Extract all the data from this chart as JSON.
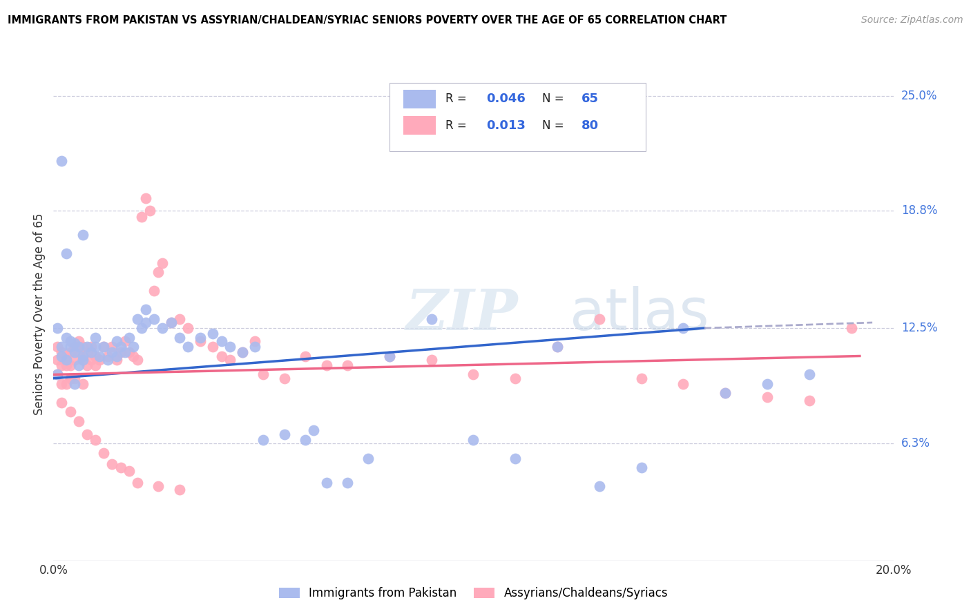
{
  "title": "IMMIGRANTS FROM PAKISTAN VS ASSYRIAN/CHALDEAN/SYRIAC SENIORS POVERTY OVER THE AGE OF 65 CORRELATION CHART",
  "source": "Source: ZipAtlas.com",
  "ylabel_ticks": [
    "6.3%",
    "12.5%",
    "18.8%",
    "25.0%"
  ],
  "ylabel_values": [
    0.063,
    0.125,
    0.188,
    0.25
  ],
  "ylabel_label": "Seniors Poverty Over the Age of 65",
  "legend_label1": "Immigrants from Pakistan",
  "legend_label2": "Assyrians/Chaldeans/Syriacs",
  "R1": "0.046",
  "N1": "65",
  "R2": "0.013",
  "N2": "80",
  "color_blue": "#aabbee",
  "color_pink": "#ffaabb",
  "color_line_blue": "#3366cc",
  "color_line_pink": "#ee6688",
  "watermark_zip": "ZIP",
  "watermark_atlas": "atlas",
  "blue_x": [
    0.001,
    0.001,
    0.002,
    0.002,
    0.003,
    0.003,
    0.004,
    0.004,
    0.005,
    0.005,
    0.006,
    0.006,
    0.007,
    0.007,
    0.008,
    0.009,
    0.01,
    0.01,
    0.011,
    0.012,
    0.013,
    0.014,
    0.015,
    0.015,
    0.016,
    0.017,
    0.018,
    0.019,
    0.02,
    0.021,
    0.022,
    0.024,
    0.026,
    0.028,
    0.03,
    0.032,
    0.035,
    0.038,
    0.04,
    0.042,
    0.045,
    0.048,
    0.05,
    0.055,
    0.06,
    0.062,
    0.065,
    0.07,
    0.075,
    0.08,
    0.09,
    0.1,
    0.11,
    0.12,
    0.13,
    0.14,
    0.15,
    0.16,
    0.17,
    0.18,
    0.002,
    0.003,
    0.005,
    0.007,
    0.022
  ],
  "blue_y": [
    0.1,
    0.125,
    0.115,
    0.11,
    0.108,
    0.12,
    0.115,
    0.118,
    0.112,
    0.117,
    0.105,
    0.115,
    0.11,
    0.108,
    0.115,
    0.112,
    0.12,
    0.115,
    0.11,
    0.115,
    0.108,
    0.112,
    0.118,
    0.11,
    0.115,
    0.112,
    0.12,
    0.115,
    0.13,
    0.125,
    0.128,
    0.13,
    0.125,
    0.128,
    0.12,
    0.115,
    0.12,
    0.122,
    0.118,
    0.115,
    0.112,
    0.115,
    0.065,
    0.068,
    0.065,
    0.07,
    0.042,
    0.042,
    0.055,
    0.11,
    0.13,
    0.065,
    0.055,
    0.115,
    0.04,
    0.05,
    0.125,
    0.09,
    0.095,
    0.1,
    0.215,
    0.165,
    0.095,
    0.175,
    0.135
  ],
  "pink_x": [
    0.001,
    0.001,
    0.001,
    0.002,
    0.002,
    0.002,
    0.003,
    0.003,
    0.003,
    0.004,
    0.004,
    0.004,
    0.005,
    0.005,
    0.005,
    0.006,
    0.006,
    0.007,
    0.007,
    0.007,
    0.008,
    0.008,
    0.009,
    0.009,
    0.01,
    0.01,
    0.011,
    0.012,
    0.013,
    0.014,
    0.015,
    0.016,
    0.017,
    0.018,
    0.019,
    0.02,
    0.021,
    0.022,
    0.023,
    0.024,
    0.025,
    0.026,
    0.028,
    0.03,
    0.032,
    0.035,
    0.038,
    0.04,
    0.042,
    0.045,
    0.048,
    0.05,
    0.055,
    0.06,
    0.065,
    0.07,
    0.08,
    0.09,
    0.1,
    0.11,
    0.12,
    0.13,
    0.14,
    0.15,
    0.16,
    0.17,
    0.18,
    0.19,
    0.002,
    0.004,
    0.006,
    0.008,
    0.01,
    0.012,
    0.014,
    0.016,
    0.018,
    0.02,
    0.025,
    0.03
  ],
  "pink_y": [
    0.108,
    0.115,
    0.1,
    0.112,
    0.105,
    0.095,
    0.11,
    0.105,
    0.095,
    0.112,
    0.105,
    0.098,
    0.115,
    0.108,
    0.098,
    0.118,
    0.112,
    0.115,
    0.108,
    0.095,
    0.112,
    0.105,
    0.115,
    0.108,
    0.11,
    0.105,
    0.108,
    0.115,
    0.11,
    0.115,
    0.108,
    0.112,
    0.118,
    0.112,
    0.11,
    0.108,
    0.185,
    0.195,
    0.188,
    0.145,
    0.155,
    0.16,
    0.128,
    0.13,
    0.125,
    0.118,
    0.115,
    0.11,
    0.108,
    0.112,
    0.118,
    0.1,
    0.098,
    0.11,
    0.105,
    0.105,
    0.11,
    0.108,
    0.1,
    0.098,
    0.115,
    0.13,
    0.098,
    0.095,
    0.09,
    0.088,
    0.086,
    0.125,
    0.085,
    0.08,
    0.075,
    0.068,
    0.065,
    0.058,
    0.052,
    0.05,
    0.048,
    0.042,
    0.04,
    0.038
  ]
}
